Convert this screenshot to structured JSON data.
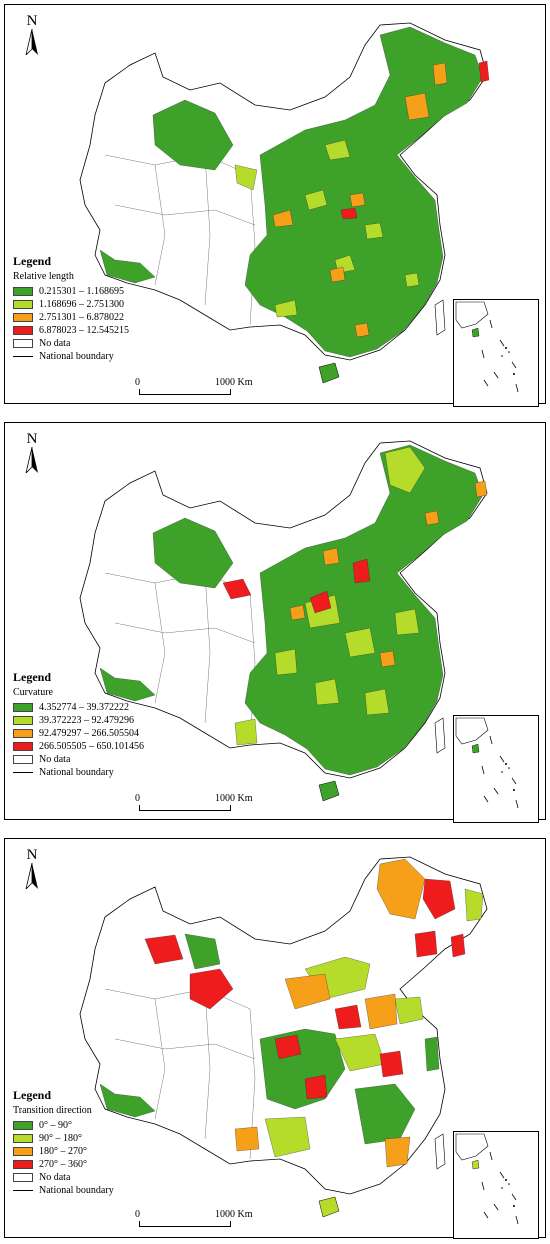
{
  "colors": {
    "green": "#3ea22a",
    "lightgreen": "#b5dc2a",
    "orange": "#f6a01a",
    "red": "#ee1c1c",
    "nodata": "#ffffff",
    "boundary": "#000000"
  },
  "north_label": "N",
  "scale": {
    "start": "0",
    "end": "1000  Km"
  },
  "panels": [
    {
      "legend_title": "Legend",
      "variable": "Relative length",
      "classes": [
        {
          "label": "0.215301 – 1.168695",
          "color": "#3ea22a"
        },
        {
          "label": "1.168696 – 2.751300",
          "color": "#b5dc2a"
        },
        {
          "label": "2.751301 – 6.878022",
          "color": "#f6a01a"
        },
        {
          "label": "6.878023 – 12.545215",
          "color": "#ee1c1c"
        }
      ],
      "no_data_label": "No data",
      "boundary_label": "National boundary"
    },
    {
      "legend_title": "Legend",
      "variable": "Curvature",
      "classes": [
        {
          "label": "4.352774 – 39.372222",
          "color": "#3ea22a"
        },
        {
          "label": "39.372223 – 92.479296",
          "color": "#b5dc2a"
        },
        {
          "label": "92.479297 – 266.505504",
          "color": "#f6a01a"
        },
        {
          "label": "266.505505 – 650.101456",
          "color": "#ee1c1c"
        }
      ],
      "no_data_label": "No data",
      "boundary_label": "National boundary"
    },
    {
      "legend_title": "Legend",
      "variable": "Transition direction",
      "classes": [
        {
          "label": "0° – 90°",
          "color": "#3ea22a"
        },
        {
          "label": "90° – 180°",
          "color": "#b5dc2a"
        },
        {
          "label": "180° – 270°",
          "color": "#f6a01a"
        },
        {
          "label": "270° – 360°",
          "color": "#ee1c1c"
        }
      ],
      "no_data_label": "No data",
      "boundary_label": "National boundary"
    }
  ]
}
